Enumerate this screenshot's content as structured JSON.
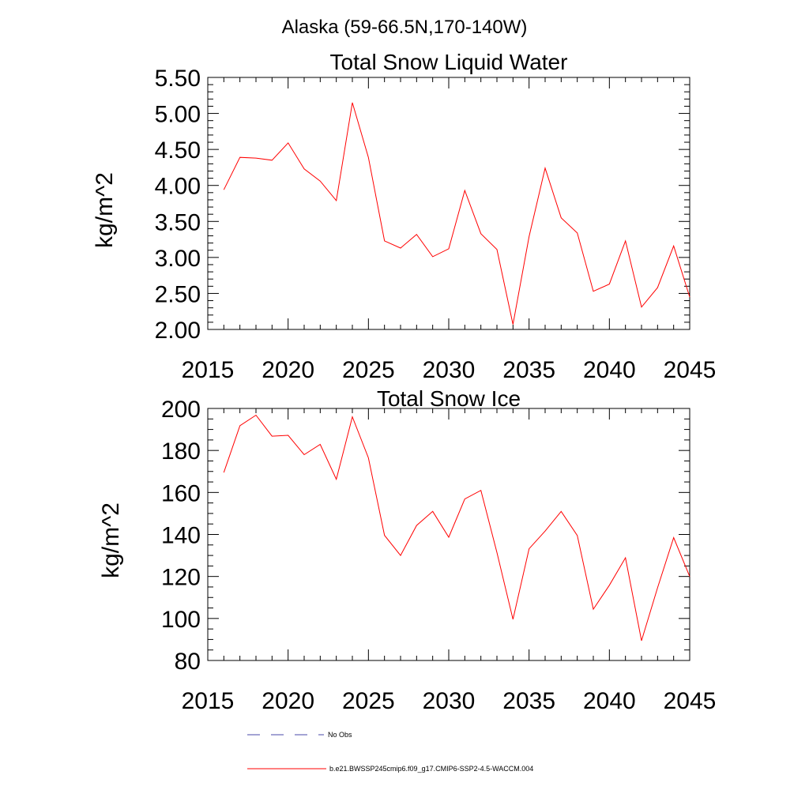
{
  "figure_title": "Alaska (59-66.5N,170-140W)",
  "line_color": "#ff0000",
  "obs_color": "#4a4aa8",
  "legend": {
    "obs_label": "No Obs",
    "model_label": "b.e21.BWSSP245cmip6.f09_g17.CMIP6-SSP2-4.5-WACCM.004"
  },
  "chart_data": [
    {
      "type": "line",
      "title": "Total Snow Liquid Water",
      "xlabel": "",
      "ylabel": "kg/m^2",
      "xlim": [
        2015,
        2045
      ],
      "ylim": [
        2.0,
        5.5
      ],
      "xticks": [
        2015,
        2020,
        2025,
        2030,
        2035,
        2040,
        2045
      ],
      "xtick_labels": [
        "2015",
        "2020",
        "2025",
        "2030",
        "2035",
        "2040",
        "2045"
      ],
      "yticks": [
        2.0,
        2.5,
        3.0,
        3.5,
        4.0,
        4.5,
        5.0,
        5.5
      ],
      "ytick_labels": [
        "2.00",
        "2.50",
        "3.00",
        "3.50",
        "4.00",
        "4.50",
        "5.00",
        "5.50"
      ],
      "grid": false,
      "series": [
        {
          "name": "b.e21.BWSSP245cmip6.f09_g17.CMIP6-SSP2-4.5-WACCM.004",
          "x": [
            2016,
            2017,
            2018,
            2019,
            2020,
            2021,
            2022,
            2023,
            2024,
            2025,
            2026,
            2027,
            2028,
            2029,
            2030,
            2031,
            2032,
            2033,
            2034,
            2035,
            2036,
            2037,
            2038,
            2039,
            2040,
            2041,
            2042,
            2043,
            2044,
            2045
          ],
          "values": [
            3.94,
            4.39,
            4.38,
            4.35,
            4.59,
            4.23,
            4.06,
            3.79,
            5.15,
            4.39,
            3.23,
            3.13,
            3.32,
            3.01,
            3.12,
            3.93,
            3.33,
            3.11,
            2.07,
            3.29,
            4.24,
            3.55,
            3.34,
            2.53,
            2.63,
            3.23,
            2.31,
            2.58,
            3.16,
            2.45
          ]
        }
      ]
    },
    {
      "type": "line",
      "title": "Total Snow Ice",
      "xlabel": "",
      "ylabel": "kg/m^2",
      "xlim": [
        2015,
        2045
      ],
      "ylim": [
        80,
        200
      ],
      "xticks": [
        2015,
        2020,
        2025,
        2030,
        2035,
        2040,
        2045
      ],
      "xtick_labels": [
        "2015",
        "2020",
        "2025",
        "2030",
        "2035",
        "2040",
        "2045"
      ],
      "yticks": [
        80,
        100,
        120,
        140,
        160,
        180,
        200
      ],
      "ytick_labels": [
        "80",
        "100",
        "120",
        "140",
        "160",
        "180",
        "200"
      ],
      "grid": false,
      "series": [
        {
          "name": "b.e21.BWSSP245cmip6.f09_g17.CMIP6-SSP2-4.5-WACCM.004",
          "x": [
            2016,
            2017,
            2018,
            2019,
            2020,
            2021,
            2022,
            2023,
            2024,
            2025,
            2026,
            2027,
            2028,
            2029,
            2030,
            2031,
            2032,
            2033,
            2034,
            2035,
            2036,
            2037,
            2038,
            2039,
            2040,
            2041,
            2042,
            2043,
            2044,
            2045
          ],
          "values": [
            169.5,
            191.8,
            196.8,
            186.8,
            187.2,
            178.0,
            182.9,
            166.3,
            196.0,
            176.5,
            139.6,
            130.0,
            144.3,
            151.0,
            138.7,
            156.9,
            161.0,
            131.4,
            99.6,
            133.2,
            141.6,
            151.0,
            139.5,
            104.4,
            115.8,
            128.9,
            89.4,
            114.6,
            138.5,
            120.0
          ]
        }
      ]
    }
  ]
}
